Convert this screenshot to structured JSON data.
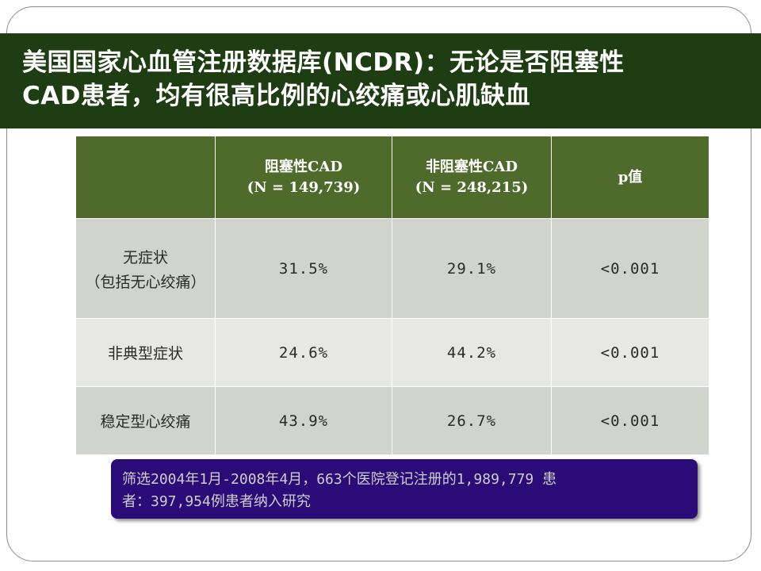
{
  "title": {
    "line1": "美国国家心血管注册数据库(NCDR)：无论是否阻塞性",
    "line2": "CAD患者，均有很高比例的心绞痛或心肌缺血"
  },
  "table": {
    "headers": [
      {
        "line1": "",
        "line2": ""
      },
      {
        "line1": "阻塞性CAD",
        "line2": "(N = 149,739)"
      },
      {
        "line1": "非阻塞性CAD",
        "line2": "(N = 248,215)"
      },
      {
        "line1": "p值",
        "line2": ""
      }
    ],
    "rows": [
      {
        "label": "无症状",
        "sublabel": "（包括无心绞痛）",
        "obstructive": "31.5%",
        "nonobstructive": "29.1%",
        "p": "<0.001"
      },
      {
        "label": "非典型症状",
        "sublabel": "",
        "obstructive": "24.6%",
        "nonobstructive": "44.2%",
        "p": "<0.001"
      },
      {
        "label": "稳定型心绞痛",
        "sublabel": "",
        "obstructive": "43.9%",
        "nonobstructive": "26.7%",
        "p": "<0.001"
      }
    ]
  },
  "note": {
    "line1": "筛选2004年1月-2008年4月，663个医院登记注册的1,989,779 患",
    "line2": "者：397,954例患者纳入研究"
  },
  "colors": {
    "title_bg": "#1f3d13",
    "header_bg": "#4e6b2b",
    "row_dark": "#d0d4cc",
    "row_light": "#e7e8e4",
    "note_bg": "#2a0b78"
  }
}
